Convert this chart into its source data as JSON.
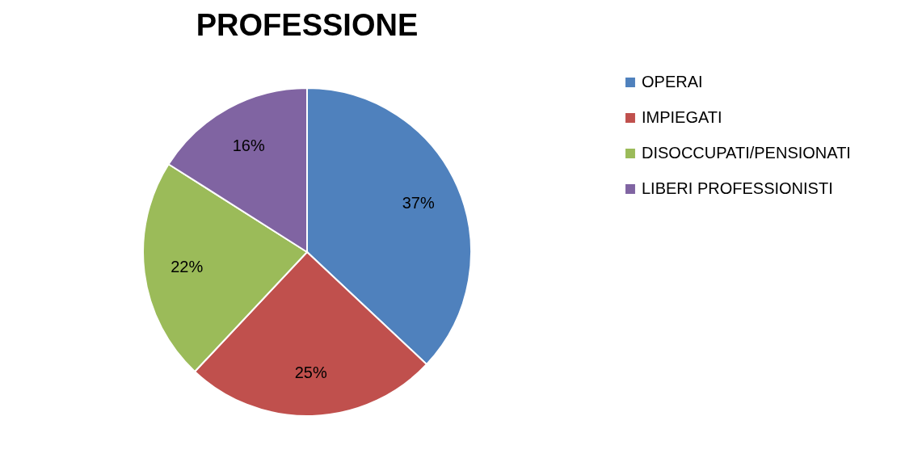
{
  "chart_data": {
    "type": "pie",
    "title": "PROFESSIONE",
    "categories": [
      "OPERAI",
      "IMPIEGATI",
      "DISOCCUPATI/PENSIONATI",
      "LIBERI PROFESSIONISTI"
    ],
    "values": [
      37,
      25,
      22,
      16
    ],
    "colors": [
      "#4f81bd",
      "#c0504d",
      "#9bbb59",
      "#8064a2"
    ],
    "value_labels": [
      "37%",
      "25%",
      "22%",
      "16%"
    ],
    "legend": "right"
  }
}
